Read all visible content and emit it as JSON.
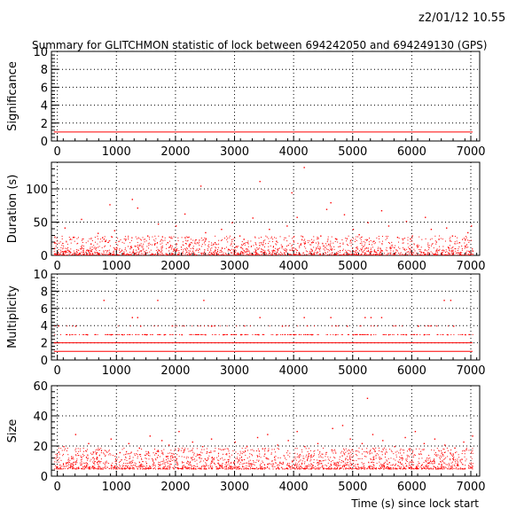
{
  "header": {
    "datetime": "z2/01/12  10.55",
    "title": "Summary for GLITCHMON statistic of lock between 694242050 and 694249130 (GPS)"
  },
  "chart_data": [
    {
      "type": "scatter",
      "id": "significance",
      "ylabel": "Significance",
      "xlim": [
        -100,
        7150
      ],
      "ylim": [
        0,
        10
      ],
      "x_ticks": [
        0,
        1000,
        2000,
        3000,
        4000,
        5000,
        6000,
        7000
      ],
      "y_ticks": [
        0,
        2,
        4,
        6,
        8,
        10
      ],
      "grid": true,
      "series": [
        {
          "values": [
            [
              -60,
              1
            ],
            [
              7030,
              1
            ]
          ],
          "style": "line"
        }
      ]
    },
    {
      "type": "scatter",
      "id": "duration",
      "ylabel": "Duration (s)",
      "xlim": [
        -100,
        7150
      ],
      "ylim": [
        0,
        140
      ],
      "x_ticks": [
        0,
        1000,
        2000,
        3000,
        4000,
        5000,
        6000,
        7000
      ],
      "y_ticks": [
        0,
        50,
        100
      ],
      "grid": true,
      "series": [
        {
          "values": [
            [
              120,
              42
            ],
            [
              260,
              28
            ],
            [
              400,
              55
            ],
            [
              560,
              18
            ],
            [
              680,
              34
            ],
            [
              800,
              22
            ],
            [
              880,
              77
            ],
            [
              960,
              38
            ],
            [
              1150,
              25
            ],
            [
              1260,
              85
            ],
            [
              1350,
              72
            ],
            [
              1520,
              30
            ],
            [
              1700,
              48
            ],
            [
              1860,
              20
            ],
            [
              2000,
              45
            ],
            [
              2150,
              63
            ],
            [
              2200,
              28
            ],
            [
              2420,
              105
            ],
            [
              2500,
              35
            ],
            [
              2660,
              20
            ],
            [
              2770,
              40
            ],
            [
              2950,
              50
            ],
            [
              3080,
              30
            ],
            [
              3150,
              25
            ],
            [
              3300,
              57
            ],
            [
              3420,
              112
            ],
            [
              3580,
              40
            ],
            [
              3700,
              22
            ],
            [
              3880,
              45
            ],
            [
              3960,
              95
            ],
            [
              4050,
              58
            ],
            [
              4170,
              133
            ],
            [
              4300,
              20
            ],
            [
              4450,
              30
            ],
            [
              4550,
              70
            ],
            [
              4620,
              80
            ],
            [
              4720,
              25
            ],
            [
              4850,
              62
            ],
            [
              5000,
              40
            ],
            [
              5100,
              32
            ],
            [
              5250,
              50
            ],
            [
              5350,
              22
            ],
            [
              5480,
              68
            ],
            [
              5600,
              45
            ],
            [
              5750,
              28
            ],
            [
              5900,
              52
            ],
            [
              6000,
              30
            ],
            [
              6080,
              15
            ],
            [
              6220,
              58
            ],
            [
              6320,
              40
            ],
            [
              6450,
              25
            ],
            [
              6580,
              42
            ],
            [
              6680,
              30
            ],
            [
              6800,
              20
            ],
            [
              6940,
              35
            ],
            [
              7000,
              45
            ]
          ]
        }
      ]
    },
    {
      "type": "scatter",
      "id": "multiplicity",
      "ylabel": "Multiplicity",
      "xlim": [
        -100,
        7150
      ],
      "ylim": [
        0,
        10
      ],
      "x_ticks": [
        0,
        1000,
        2000,
        3000,
        4000,
        5000,
        6000,
        7000
      ],
      "y_ticks": [
        0,
        2,
        4,
        6,
        8,
        10
      ],
      "grid": true,
      "series": [
        {
          "values": [
            [
              -60,
              1
            ],
            [
              7030,
              1
            ]
          ],
          "style": "line"
        },
        {
          "values": [
            [
              -60,
              2
            ],
            [
              7030,
              2
            ]
          ],
          "style": "line"
        },
        {
          "values": [
            [
              200,
              3
            ],
            [
              500,
              3
            ],
            [
              900,
              3
            ],
            [
              1100,
              3
            ],
            [
              1500,
              3
            ],
            [
              1800,
              3
            ],
            [
              2100,
              3
            ],
            [
              2500,
              3
            ],
            [
              2800,
              3
            ],
            [
              3100,
              3
            ],
            [
              3400,
              3
            ],
            [
              3700,
              3
            ],
            [
              4000,
              3
            ],
            [
              4300,
              3
            ],
            [
              4700,
              3
            ],
            [
              5000,
              3
            ],
            [
              5300,
              3
            ],
            [
              5600,
              3
            ],
            [
              5900,
              3
            ],
            [
              6200,
              3
            ],
            [
              6600,
              3
            ],
            [
              6900,
              3
            ],
            [
              300,
              4
            ],
            [
              1400,
              4
            ],
            [
              2600,
              4
            ],
            [
              3800,
              4
            ],
            [
              4900,
              4
            ],
            [
              5200,
              5
            ],
            [
              5300,
              5
            ],
            [
              6100,
              4
            ],
            [
              6700,
              4
            ],
            [
              1260,
              5
            ],
            [
              1350,
              5
            ],
            [
              3420,
              5
            ],
            [
              4170,
              5
            ],
            [
              4620,
              5
            ],
            [
              5480,
              5
            ],
            [
              780,
              7
            ],
            [
              1690,
              7
            ],
            [
              2470,
              7
            ],
            [
              6540,
              7
            ],
            [
              6650,
              7
            ]
          ]
        }
      ]
    },
    {
      "type": "scatter",
      "id": "size",
      "ylabel": "Size",
      "xlabel": "Time (s) since lock start",
      "xlim": [
        -100,
        7150
      ],
      "ylim": [
        0,
        60
      ],
      "x_ticks": [
        0,
        1000,
        2000,
        3000,
        4000,
        5000,
        6000,
        7000
      ],
      "y_ticks": [
        0,
        20,
        40,
        60
      ],
      "grid": true,
      "series": [
        {
          "values": [
            [
              100,
              20
            ],
            [
              300,
              28
            ],
            [
              520,
              22
            ],
            [
              700,
              18
            ],
            [
              900,
              25
            ],
            [
              1050,
              16
            ],
            [
              1200,
              22
            ],
            [
              1380,
              19
            ],
            [
              1560,
              27
            ],
            [
              1760,
              24
            ],
            [
              1880,
              21
            ],
            [
              2050,
              30
            ],
            [
              2280,
              23
            ],
            [
              2450,
              20
            ],
            [
              2600,
              25
            ],
            [
              2800,
              18
            ],
            [
              3000,
              23
            ],
            [
              3200,
              20
            ],
            [
              3380,
              26
            ],
            [
              3550,
              28
            ],
            [
              3720,
              21
            ],
            [
              3900,
              24
            ],
            [
              4050,
              30
            ],
            [
              4180,
              20
            ],
            [
              4400,
              22
            ],
            [
              4650,
              32
            ],
            [
              4820,
              34
            ],
            [
              4950,
              25
            ],
            [
              5150,
              22
            ],
            [
              5240,
              52
            ],
            [
              5330,
              28
            ],
            [
              5500,
              24
            ],
            [
              5700,
              20
            ],
            [
              5880,
              26
            ],
            [
              6050,
              30
            ],
            [
              6200,
              22
            ],
            [
              6380,
              25
            ],
            [
              6550,
              21
            ],
            [
              6720,
              19
            ],
            [
              6870,
              23
            ],
            [
              7020,
              27
            ]
          ]
        }
      ]
    }
  ],
  "colors": {
    "points": "#ff0000",
    "axes": "#000000",
    "grid": "#000000"
  }
}
